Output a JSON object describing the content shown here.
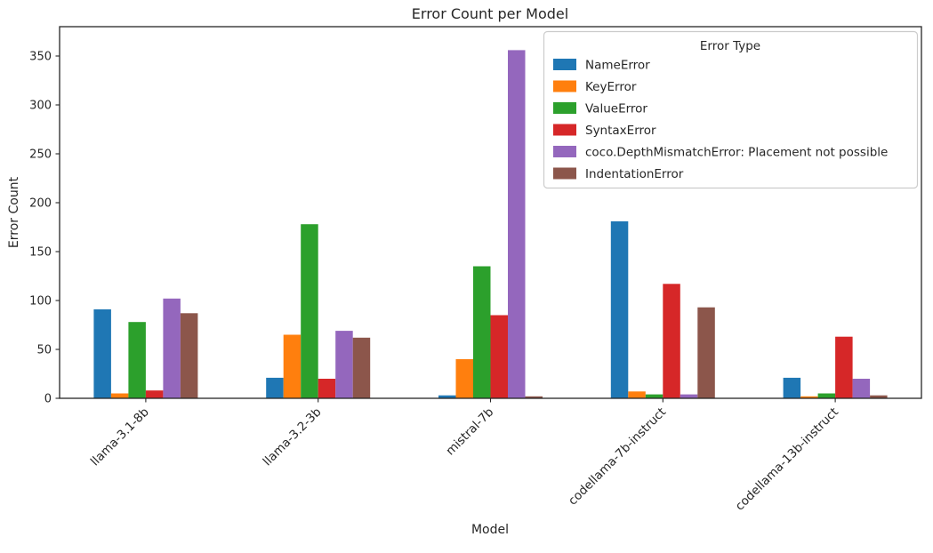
{
  "figure": {
    "title": "Error Count per Model",
    "xlabel": "Model",
    "ylabel": "Error Count",
    "legend_title": "Error Type"
  },
  "chart_data": {
    "type": "bar",
    "title": "Error Count per Model",
    "xlabel": "Model",
    "ylabel": "Error Count",
    "categories": [
      "llama-3.1-8b",
      "llama-3.2-3b",
      "mistral-7b",
      "codellama-7b-instruct",
      "codellama-13b-instruct"
    ],
    "series": [
      {
        "name": "NameError",
        "color": "#1f77b4",
        "values": [
          91,
          21,
          3,
          181,
          21
        ]
      },
      {
        "name": "KeyError",
        "color": "#ff7f0e",
        "values": [
          5,
          65,
          40,
          7,
          2
        ]
      },
      {
        "name": "ValueError",
        "color": "#2ca02c",
        "values": [
          78,
          178,
          135,
          4,
          5
        ]
      },
      {
        "name": "SyntaxError",
        "color": "#d62728",
        "values": [
          8,
          20,
          85,
          117,
          63
        ]
      },
      {
        "name": "coco.DepthMismatchError: Placement not possible",
        "color": "#9467bd",
        "values": [
          102,
          69,
          356,
          4,
          20
        ]
      },
      {
        "name": "IndentationError",
        "color": "#8c564b",
        "values": [
          87,
          62,
          2,
          93,
          3
        ]
      }
    ],
    "yticks": [
      0,
      50,
      100,
      150,
      200,
      250,
      300,
      350
    ],
    "ylim": [
      0,
      380
    ],
    "grid": false,
    "legend": {
      "title": "Error Type",
      "position": "upper right"
    }
  }
}
